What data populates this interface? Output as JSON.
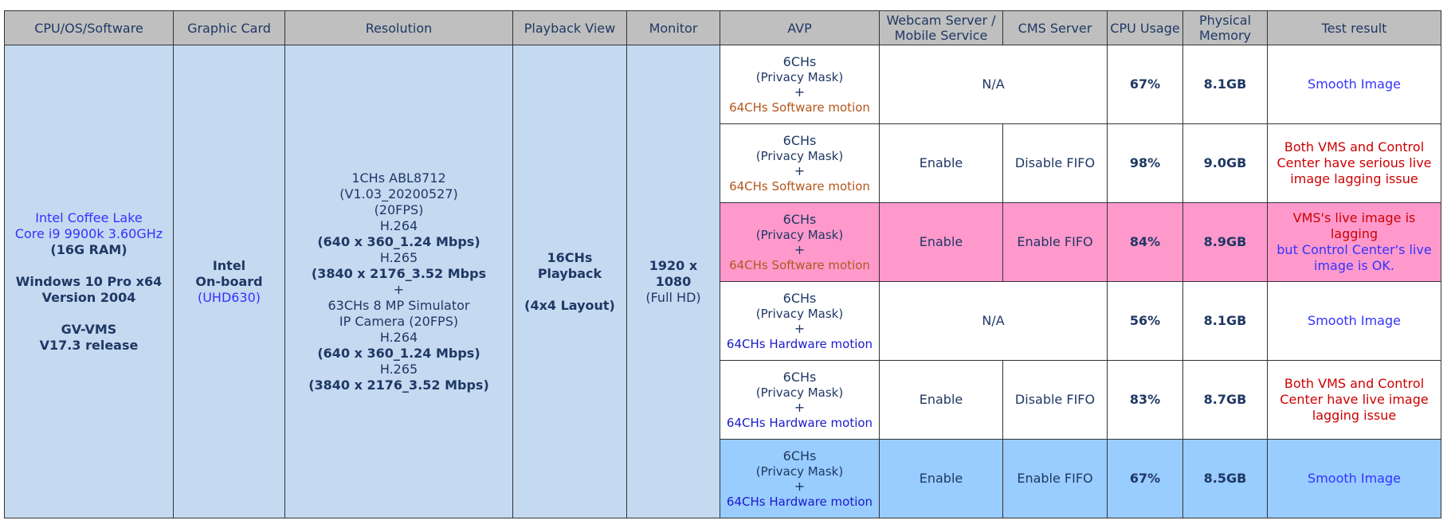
{
  "header": [
    "CPU/OS/Software",
    "Graphic Card",
    "Resolution",
    "Playback View",
    "Monitor",
    "AVP",
    "Webcam Server / Mobile Service",
    "CMS Server",
    "CPU Usage",
    "Physical Memory",
    "Test result"
  ],
  "system": {
    "cpu": [
      "Intel Coffee Lake",
      "Core i9 9900k 3.60GHz",
      "(16G RAM)",
      "Windows 10 Pro x64",
      "Version 2004",
      "GV-VMS",
      "V17.3 release"
    ],
    "graphic": [
      "Intel",
      "On-board",
      "(UHD630)"
    ],
    "resolution": [
      "1CHs ABL8712",
      "(V1.03_20200527)",
      "(20FPS)",
      "H.264",
      "(640 x 360_1.24 Mbps)",
      "H.265",
      "(3840 x 2176_3.52 Mbps",
      "+",
      "63CHs 8 MP Simulator",
      "IP Camera (20FPS)",
      "H.264",
      "(640 x 360_1.24 Mbps)",
      "H.265",
      "(3840 x 2176_3.52 Mbps)"
    ],
    "playback": [
      "16CHs",
      "Playback",
      "(4x4 Layout)"
    ],
    "monitor": [
      "1920 x",
      "1080",
      "(Full HD)"
    ]
  },
  "rows": [
    {
      "avp": [
        "6CHs",
        "(Privacy Mask)",
        "+",
        "64CHs Software motion"
      ],
      "webcam": "N/A",
      "cpu": "67%",
      "memory": "8.1GB",
      "result": [
        "Smooth Image"
      ]
    },
    {
      "avp": [
        "6CHs",
        "(Privacy Mask)",
        "+",
        "64CHs Software motion"
      ],
      "webcam": "Enable",
      "cms": "Disable FIFO",
      "cpu": "98%",
      "memory": "9.0GB",
      "result": [
        "Both VMS and Control Center have serious live image lagging issue"
      ]
    },
    {
      "avp": [
        "6CHs",
        "(Privacy Mask)",
        "+",
        "64CHs Software motion"
      ],
      "webcam": "Enable",
      "cms": "Enable FIFO",
      "cpu": "84%",
      "memory": "8.9GB",
      "result": [
        "VMS's live image is lagging",
        "but Control Center's live image is OK."
      ]
    },
    {
      "avp": [
        "6CHs",
        "(Privacy Mask)",
        "+",
        "64CHs Hardware motion"
      ],
      "webcam": "N/A",
      "cpu": "56%",
      "memory": "8.1GB",
      "result": [
        "Smooth Image"
      ]
    },
    {
      "avp": [
        "6CHs",
        "(Privacy Mask)",
        "+",
        "64CHs Hardware motion"
      ],
      "webcam": "Enable",
      "cms": "Disable FIFO",
      "cpu": "83%",
      "memory": "8.7GB",
      "result": [
        "Both VMS and Control Center have live image lagging issue"
      ]
    },
    {
      "avp": [
        "6CHs",
        "(Privacy Mask)",
        "+",
        "64CHs Hardware motion"
      ],
      "webcam": "Enable",
      "cms": "Enable FIFO",
      "cpu": "67%",
      "memory": "8.5GB",
      "result": [
        "Smooth Image"
      ]
    }
  ]
}
